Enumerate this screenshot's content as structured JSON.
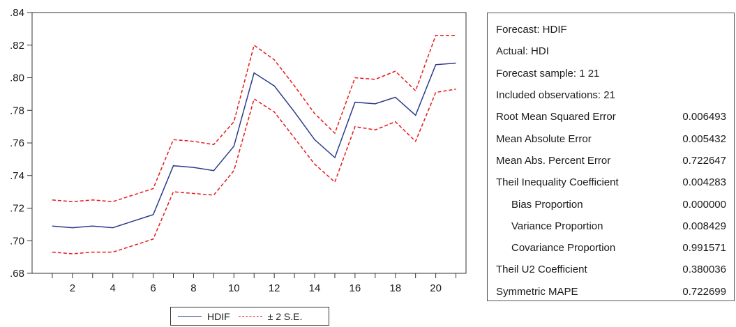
{
  "chart_data": {
    "type": "line",
    "x": [
      1,
      2,
      3,
      4,
      5,
      6,
      7,
      8,
      9,
      10,
      11,
      12,
      13,
      14,
      15,
      16,
      17,
      18,
      19,
      20,
      21
    ],
    "x_tick_labels": [
      "2",
      "4",
      "6",
      "8",
      "10",
      "12",
      "14",
      "16",
      "18",
      "20"
    ],
    "x_tick_values": [
      2,
      4,
      6,
      8,
      10,
      12,
      14,
      16,
      18,
      20
    ],
    "y_tick_labels": [
      ".68",
      ".70",
      ".72",
      ".74",
      ".76",
      ".78",
      ".80",
      ".82",
      ".84"
    ],
    "y_tick_values": [
      0.68,
      0.7,
      0.72,
      0.74,
      0.76,
      0.78,
      0.8,
      0.82,
      0.84
    ],
    "xlim": [
      0,
      21.5
    ],
    "ylim": [
      0.68,
      0.84
    ],
    "grid": false,
    "legend_position": "bottom-center",
    "series": [
      {
        "name": "HDIF",
        "color": "#2b3a8c",
        "style": "solid",
        "values": [
          0.709,
          0.708,
          0.709,
          0.708,
          0.712,
          0.716,
          0.746,
          0.745,
          0.743,
          0.758,
          0.803,
          0.795,
          0.779,
          0.762,
          0.751,
          0.785,
          0.784,
          0.788,
          0.777,
          0.808,
          0.809
        ]
      },
      {
        "name": "± 2 S.E.",
        "color": "#e8191c",
        "style": "dashed",
        "values": [
          0.725,
          0.724,
          0.725,
          0.724,
          0.728,
          0.732,
          0.762,
          0.761,
          0.759,
          0.773,
          0.82,
          0.811,
          0.795,
          0.778,
          0.766,
          0.8,
          0.799,
          0.804,
          0.792,
          0.826,
          0.826
        ]
      },
      {
        "name": "",
        "color": "#e8191c",
        "style": "dashed",
        "values": [
          0.693,
          0.692,
          0.693,
          0.693,
          0.697,
          0.701,
          0.73,
          0.729,
          0.728,
          0.743,
          0.787,
          0.779,
          0.763,
          0.747,
          0.736,
          0.77,
          0.768,
          0.773,
          0.761,
          0.791,
          0.793
        ]
      }
    ]
  },
  "legend": {
    "items": [
      {
        "label": "HDIF"
      },
      {
        "label": "± 2 S.E."
      }
    ]
  },
  "stats": {
    "forecast": "Forecast: HDIF",
    "actual": "Actual: HDI",
    "sample": "Forecast sample: 1 21",
    "observations": "Included observations: 21",
    "rows": [
      {
        "label": "Root Mean Squared Error",
        "value": "0.006493"
      },
      {
        "label": "Mean Absolute Error",
        "value": "0.005432"
      },
      {
        "label": "Mean Abs. Percent Error",
        "value": "0.722647"
      },
      {
        "label": "Theil Inequality Coefficient",
        "value": "0.004283"
      },
      {
        "label": "Bias Proportion",
        "value": "0.000000"
      },
      {
        "label": "Variance Proportion",
        "value": "0.008429"
      },
      {
        "label": "Covariance Proportion",
        "value": "0.991571"
      },
      {
        "label": "Theil U2 Coefficient",
        "value": "0.380036"
      },
      {
        "label": "Symmetric MAPE",
        "value": "0.722699"
      }
    ]
  }
}
